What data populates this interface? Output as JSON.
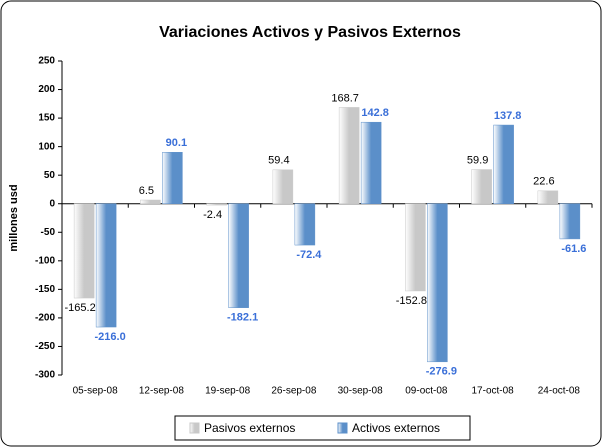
{
  "chart_data": {
    "type": "bar",
    "title": "Variaciones Activos y Pasivos Externos",
    "y_axis_label": "millones usd",
    "categories": [
      "05-sep-08",
      "12-sep-08",
      "19-sep-08",
      "26-sep-08",
      "30-sep-08",
      "09-oct-08",
      "17-oct-08",
      "24-oct-08"
    ],
    "series": [
      {
        "name": "Pasivos externos",
        "color": "#c8c8c8",
        "values": [
          -165.2,
          6.5,
          -2.4,
          59.4,
          168.7,
          -152.8,
          59.9,
          22.6
        ]
      },
      {
        "name": "Activos externos",
        "color": "#5b8fc9",
        "values": [
          -216,
          90.1,
          -182.1,
          -72.4,
          142.8,
          -276.9,
          137.8,
          -61.6
        ],
        "value_labels": [
          "-216.0",
          "90.1",
          "-182.1",
          "-72.4",
          "142.8",
          "-276.9",
          "137.8",
          "-61.6"
        ]
      }
    ],
    "ylim": [
      -300,
      250
    ],
    "yticks": [
      -300,
      -250,
      -200,
      -150,
      -100,
      -50,
      0,
      50,
      100,
      150,
      200,
      250
    ],
    "grid": false,
    "legend": "bottom"
  }
}
